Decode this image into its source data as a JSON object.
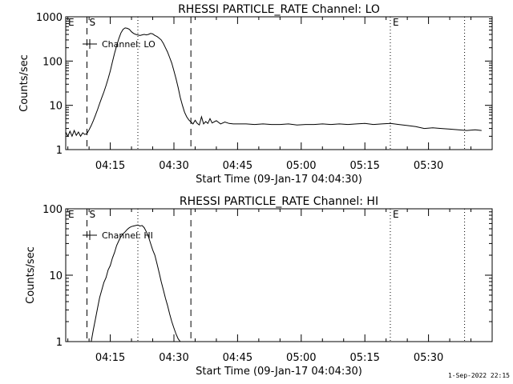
{
  "timestamp": "1-Sep-2022 22:15",
  "chart_data": [
    {
      "type": "line",
      "title": "RHESSI PARTICLE_RATE Channel: LO",
      "xlabel": "Start Time (09-Jan-17 04:04:30)",
      "ylabel": "Counts/sec",
      "yscale": "log",
      "ylim": [
        1,
        1000
      ],
      "xlim": [
        "04:04:30",
        "05:45:00"
      ],
      "x_ticks": [
        "04:15",
        "04:30",
        "04:45",
        "05:00",
        "05:15",
        "05:30"
      ],
      "y_ticks": [
        "1",
        "10",
        "100",
        "1000"
      ],
      "legend": "Channel: LO",
      "legend_position": "top-left",
      "markers": [
        {
          "label": "E",
          "time": "04:04:30",
          "style": "dotted"
        },
        {
          "label": "S",
          "time": "04:09:30",
          "style": "dashed"
        },
        {
          "label": "",
          "time": "04:21:30",
          "style": "dotted"
        },
        {
          "label": "",
          "time": "04:34:00",
          "style": "dashed"
        },
        {
          "label": "E",
          "time": "05:21:00",
          "style": "dotted"
        },
        {
          "label": "",
          "time": "05:38:30",
          "style": "dotted"
        }
      ],
      "series": [
        {
          "x": [
            "04:04:30",
            "04:05:00",
            "04:05:30",
            "04:06:00",
            "04:06:30",
            "04:07:00",
            "04:07:30",
            "04:08:00",
            "04:08:30",
            "04:09:00",
            "04:09:30",
            "04:10:00",
            "04:10:30",
            "04:11:00",
            "04:11:30",
            "04:12:00",
            "04:12:30",
            "04:13:00",
            "04:13:30",
            "04:14:00",
            "04:14:30",
            "04:15:00",
            "04:15:30",
            "04:16:00",
            "04:16:30",
            "04:17:00",
            "04:17:30",
            "04:18:00",
            "04:18:30",
            "04:19:00",
            "04:19:30",
            "04:20:00",
            "04:20:30",
            "04:21:00",
            "04:21:30",
            "04:22:00",
            "04:22:30",
            "04:23:00",
            "04:23:30",
            "04:24:00",
            "04:24:30",
            "04:25:00",
            "04:25:30",
            "04:26:00",
            "04:26:30",
            "04:27:00",
            "04:27:30",
            "04:28:00",
            "04:28:30",
            "04:29:00",
            "04:29:30",
            "04:30:00",
            "04:30:30",
            "04:31:00",
            "04:31:30",
            "04:32:00",
            "04:32:30",
            "04:33:00",
            "04:33:30",
            "04:34:00",
            "04:34:30",
            "04:35:00",
            "04:35:30",
            "04:36:00",
            "04:36:30",
            "04:37:00",
            "04:37:30",
            "04:38:00",
            "04:38:30",
            "04:39:00",
            "04:40:00",
            "04:41:00",
            "04:42:00",
            "04:43:00",
            "04:44:00",
            "04:45:00",
            "04:47:00",
            "04:49:00",
            "04:51:00",
            "04:53:00",
            "04:55:00",
            "04:57:00",
            "04:59:00",
            "05:01:00",
            "05:03:00",
            "05:05:00",
            "05:07:00",
            "05:09:00",
            "05:11:00",
            "05:13:00",
            "05:15:00",
            "05:17:00",
            "05:19:00",
            "05:21:00",
            "05:23:00",
            "05:25:00",
            "05:27:00",
            "05:29:00",
            "05:31:00",
            "05:33:00",
            "05:35:00",
            "05:37:00",
            "05:39:00",
            "05:41:00",
            "05:42:30"
          ],
          "y": [
            2.5,
            2.0,
            2.6,
            2.0,
            2.7,
            2.1,
            2.5,
            2.0,
            2.4,
            2.2,
            2.3,
            2.8,
            3.5,
            4.5,
            6.0,
            8.0,
            11,
            15,
            20,
            28,
            40,
            60,
            95,
            150,
            220,
            320,
            430,
            520,
            560,
            550,
            520,
            460,
            420,
            400,
            390,
            380,
            390,
            400,
            390,
            400,
            420,
            410,
            380,
            360,
            330,
            300,
            250,
            200,
            160,
            120,
            90,
            60,
            40,
            25,
            15,
            10,
            7,
            5.5,
            4.7,
            4.2,
            3.8,
            4.6,
            3.9,
            3.6,
            5.5,
            3.8,
            4.3,
            3.9,
            5.0,
            4.0,
            4.5,
            3.8,
            4.2,
            3.9,
            3.8,
            3.8,
            3.8,
            3.7,
            3.8,
            3.7,
            3.7,
            3.8,
            3.6,
            3.7,
            3.7,
            3.8,
            3.7,
            3.8,
            3.7,
            3.8,
            3.9,
            3.7,
            3.8,
            3.9,
            3.7,
            3.5,
            3.3,
            3.0,
            3.1,
            3.0,
            2.9,
            2.8,
            2.7,
            2.8,
            2.7
          ]
        }
      ]
    },
    {
      "type": "line",
      "title": "RHESSI PARTICLE_RATE Channel: HI",
      "xlabel": "Start Time (09-Jan-17 04:04:30)",
      "ylabel": "Counts/sec",
      "yscale": "log",
      "ylim": [
        1,
        100
      ],
      "xlim": [
        "04:04:30",
        "05:45:00"
      ],
      "x_ticks": [
        "04:15",
        "04:30",
        "04:45",
        "05:00",
        "05:15",
        "05:30"
      ],
      "y_ticks": [
        "1",
        "10",
        "100"
      ],
      "legend": "Channel: HI",
      "legend_position": "top-left",
      "markers": [
        {
          "label": "E",
          "time": "04:04:30",
          "style": "dotted"
        },
        {
          "label": "S",
          "time": "04:09:30",
          "style": "dashed"
        },
        {
          "label": "",
          "time": "04:21:30",
          "style": "dotted"
        },
        {
          "label": "",
          "time": "04:34:00",
          "style": "dashed"
        },
        {
          "label": "E",
          "time": "05:21:00",
          "style": "dotted"
        },
        {
          "label": "",
          "time": "05:38:30",
          "style": "dotted"
        }
      ],
      "series": [
        {
          "x": [
            "04:10:30",
            "04:11:00",
            "04:11:30",
            "04:12:00",
            "04:12:30",
            "04:13:00",
            "04:13:30",
            "04:14:00",
            "04:14:30",
            "04:15:00",
            "04:15:30",
            "04:16:00",
            "04:16:30",
            "04:17:00",
            "04:17:30",
            "04:18:00",
            "04:18:30",
            "04:19:00",
            "04:19:30",
            "04:20:00",
            "04:20:30",
            "04:21:00",
            "04:21:30",
            "04:22:00",
            "04:22:30",
            "04:23:00",
            "04:23:30",
            "04:24:00",
            "04:24:30",
            "04:25:00",
            "04:25:30",
            "04:26:00",
            "04:26:30",
            "04:27:00",
            "04:27:30",
            "04:28:00",
            "04:28:30",
            "04:29:00",
            "04:29:30",
            "04:30:00",
            "04:30:30",
            "04:31:00",
            "04:31:30"
          ],
          "y": [
            1.0,
            1.5,
            2.2,
            3.2,
            4.6,
            6.0,
            7.8,
            9.2,
            12,
            14,
            18,
            22,
            28,
            33,
            38,
            42,
            45,
            49,
            52,
            54,
            55,
            56,
            57,
            55,
            56,
            52,
            45,
            38,
            30,
            24,
            20,
            15,
            11,
            8,
            6,
            4.5,
            3.5,
            2.6,
            2.0,
            1.6,
            1.3,
            1.1,
            1.0
          ]
        }
      ]
    }
  ]
}
